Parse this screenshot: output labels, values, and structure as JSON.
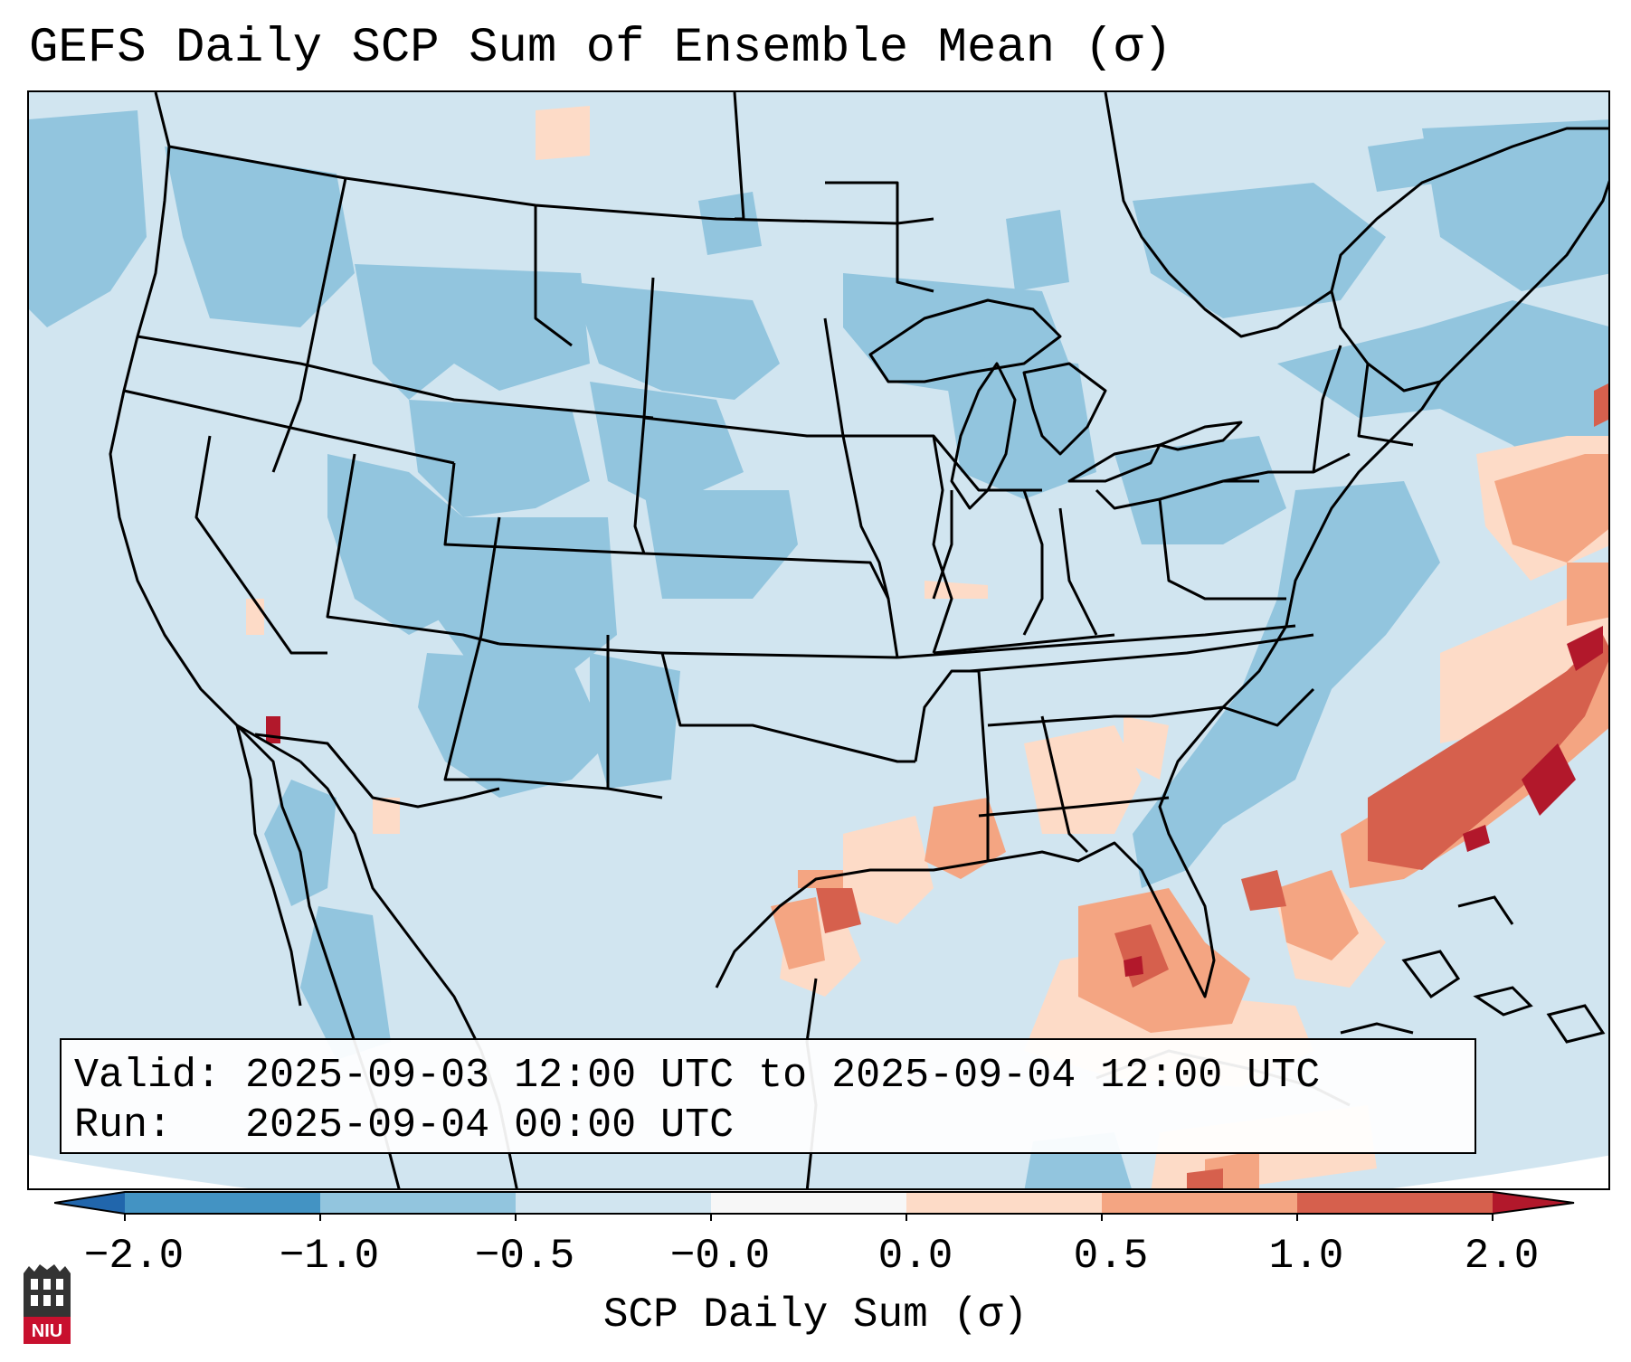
{
  "title": "GEFS Daily SCP Sum of Ensemble Mean (σ)",
  "info": {
    "valid_label": "Valid:",
    "valid_value": "2025-09-03 12:00 UTC to 2025-09-04 12:00 UTC",
    "run_label": "Run:",
    "run_value": "2025-09-04 00:00 UTC"
  },
  "colorbar": {
    "label": "SCP Daily Sum (σ)",
    "ticks": [
      "−2.0",
      "−1.0",
      "−0.5",
      "−0.0",
      "0.0",
      "0.5",
      "1.0",
      "2.0"
    ],
    "bin_colors": [
      "#4393c3",
      "#92c5de",
      "#d1e5f0",
      "#f7f7f7",
      "#fddbc7",
      "#f4a582",
      "#d6604d"
    ],
    "under_color": "#2166ac",
    "over_color": "#b2182b"
  },
  "logo": {
    "text": "NIU",
    "color": "#c8102e"
  },
  "map": {
    "projection": "Lambert Conformal (CONUS)",
    "land_base_color": "#d1e5f0",
    "outside_color": "#ffffff"
  }
}
